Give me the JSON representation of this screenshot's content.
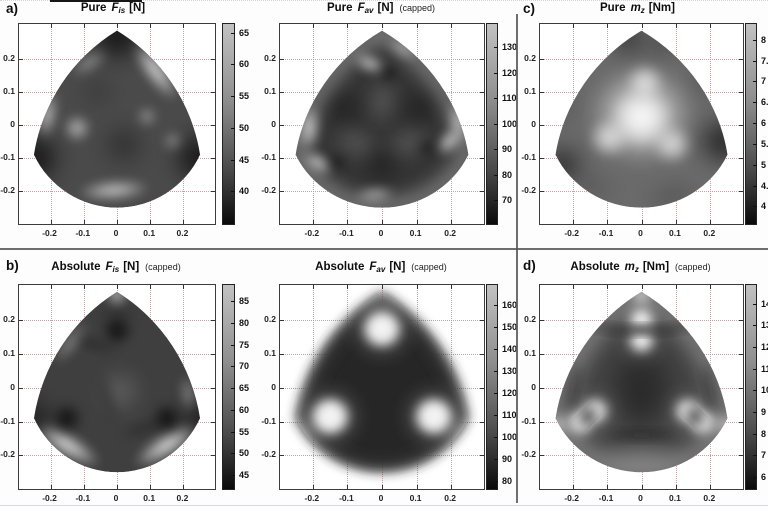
{
  "figure": {
    "xlim": [
      -0.295,
      0.295
    ],
    "ylim": [
      -0.3,
      0.305
    ],
    "panels": [
      {
        "id": "fis-pure",
        "corner": "a)",
        "title": {
          "prefix": "Pure",
          "sym": "F",
          "sub": "is",
          "unit": "[N]",
          "capped": ""
        },
        "x_ticks": [
          "-0.2",
          "-0.1",
          "0",
          "0.1",
          "0.2"
        ],
        "y_ticks": [
          "0.2",
          "0.1",
          "0",
          "-0.1",
          "-0.2"
        ],
        "colorbar_labels": [
          "65",
          "60",
          "55",
          "50",
          "45",
          "40"
        ]
      },
      {
        "id": "fav-pure",
        "corner": "",
        "title": {
          "prefix": "Pure",
          "sym": "F",
          "sub": "av",
          "unit": "[N]",
          "capped": "(capped)"
        },
        "x_ticks": [
          "-0.2",
          "-0.1",
          "0",
          "0.1",
          "0.2"
        ],
        "y_ticks": [
          "0.2",
          "0.1",
          "0",
          "-0.1",
          "-0.2"
        ],
        "colorbar_labels": [
          "130",
          "120",
          "110",
          "100",
          "90",
          "80",
          "70"
        ]
      },
      {
        "id": "mz-pure",
        "corner": "c)",
        "title": {
          "prefix": "Pure",
          "sym": "m",
          "sub": "z",
          "unit": "[Nm]",
          "capped": ""
        },
        "x_ticks": [
          "-0.2",
          "-0.1",
          "0",
          "0.1",
          "0.2"
        ],
        "y_ticks": [
          "0.2",
          "0.1",
          "0",
          "-0.1",
          "-0.2"
        ],
        "colorbar_labels": [
          "8",
          "7.5",
          "7",
          "6.5",
          "6",
          "5.5",
          "5",
          "4.5",
          "4"
        ]
      },
      {
        "id": "fis-abs",
        "corner": "b)",
        "title": {
          "prefix": "Absolute",
          "sym": "F",
          "sub": "is",
          "unit": "[N]",
          "capped": "(capped)"
        },
        "x_ticks": [
          "-0.2",
          "-0.1",
          "0",
          "0.1",
          "0.2"
        ],
        "y_ticks": [
          "0.2",
          "0.1",
          "0",
          "-0.1",
          "-0.2"
        ],
        "colorbar_labels": [
          "85",
          "80",
          "75",
          "70",
          "65",
          "60",
          "55",
          "50",
          "45"
        ]
      },
      {
        "id": "fav-abs",
        "corner": "",
        "title": {
          "prefix": "Absolute",
          "sym": "F",
          "sub": "av",
          "unit": "[N]",
          "capped": "(capped)"
        },
        "x_ticks": [
          "-0.2",
          "-0.1",
          "0",
          "0.1",
          "0.2"
        ],
        "y_ticks": [
          "0.2",
          "0.1",
          "0",
          "-0.1",
          "-0.2"
        ],
        "colorbar_labels": [
          "160",
          "150",
          "140",
          "130",
          "120",
          "110",
          "100",
          "90",
          "80"
        ]
      },
      {
        "id": "mz-abs",
        "corner": "d)",
        "title": {
          "prefix": "Absolute",
          "sym": "m",
          "sub": "z",
          "unit": "[Nm]",
          "capped": "(capped)"
        },
        "x_ticks": [
          "-0.2",
          "-0.1",
          "0",
          "0.1",
          "0.2"
        ],
        "y_ticks": [
          "0.2",
          "0.1",
          "0",
          "-0.1",
          "-0.2"
        ],
        "colorbar_labels": [
          "14",
          "13",
          "12",
          "11",
          "10",
          "9",
          "8",
          "7",
          "6"
        ]
      }
    ]
  },
  "chart_data": [
    {
      "type": "heatmap",
      "panel": "a",
      "title": "Pure F_is [N]",
      "capped": false,
      "colormap": "gray",
      "domain_shape": "reuleaux-triangle-workspace",
      "xlim": [
        -0.295,
        0.295
      ],
      "ylim": [
        -0.3,
        0.305
      ],
      "x_ticks": [
        -0.2,
        -0.1,
        0,
        0.1,
        0.2
      ],
      "y_ticks": [
        -0.2,
        -0.1,
        0,
        0.1,
        0.2
      ],
      "colorbar_ticks": [
        40,
        45,
        50,
        55,
        60,
        65
      ],
      "value_range": [
        35.0,
        66.5
      ],
      "pattern": "mostly dark (~40-50 N); bright streaks up to ~65 N along upper-right, left and bottom edges; darkest at the three workspace vertices"
    },
    {
      "type": "heatmap",
      "panel": "top-middle",
      "title": "Pure F_av [N] (capped)",
      "capped": true,
      "colormap": "gray",
      "domain_shape": "reuleaux-triangle-workspace",
      "xlim": [
        -0.295,
        0.295
      ],
      "ylim": [
        -0.3,
        0.305
      ],
      "x_ticks": [
        -0.2,
        -0.1,
        0,
        0.1,
        0.2
      ],
      "y_ticks": [
        -0.2,
        -0.1,
        0,
        0.1,
        0.2
      ],
      "colorbar_ticks": [
        70,
        80,
        90,
        100,
        110,
        120,
        130
      ],
      "value_range": [
        61,
        139.5
      ],
      "pattern": "dark core with light outer rim; bright swirl singularities near (0,0.17), (-0.15,-0.09) and (0.15,-0.09); bright patches at left and right edges"
    },
    {
      "type": "heatmap",
      "panel": "c",
      "title": "Pure m_z [Nm]",
      "capped": false,
      "colormap": "gray",
      "domain_shape": "reuleaux-triangle-workspace",
      "xlim": [
        -0.295,
        0.295
      ],
      "ylim": [
        -0.3,
        0.305
      ],
      "x_ticks": [
        -0.2,
        -0.1,
        0,
        0.1,
        0.2
      ],
      "y_ticks": [
        -0.2,
        -0.1,
        0,
        0.1,
        0.2
      ],
      "colorbar_ticks": [
        4,
        4.5,
        5,
        5.5,
        6,
        6.5,
        7,
        7.5,
        8
      ],
      "value_range": [
        3.6,
        8.4
      ],
      "pattern": "bright plateau (~8 Nm) in the centre; dark blobs (~4 Nm) at the right corner, lower-left corner and near the apex"
    },
    {
      "type": "heatmap",
      "panel": "b",
      "title": "Absolute F_is [N] (capped)",
      "capped": true,
      "colormap": "gray",
      "domain_shape": "reuleaux-triangle-workspace",
      "xlim": [
        -0.295,
        0.295
      ],
      "ylim": [
        -0.3,
        0.305
      ],
      "x_ticks": [
        -0.2,
        -0.1,
        0,
        0.1,
        0.2
      ],
      "y_ticks": [
        -0.2,
        -0.1,
        0,
        0.1,
        0.2
      ],
      "colorbar_ticks": [
        45,
        50,
        55,
        60,
        65,
        70,
        75,
        80,
        85
      ],
      "value_range": [
        42,
        89
      ],
      "pattern": "dark interior with bright rim (~85 N) along lower-left and lower-right edges and apex tip; dark singular points at (0,0.17), (-0.15,-0.09), (0.15,-0.09) with thin dark radiating curves"
    },
    {
      "type": "heatmap",
      "panel": "bottom-middle",
      "title": "Absolute F_av [N] (capped)",
      "capped": true,
      "colormap": "gray",
      "domain_shape": "rounded-triangle-workspace",
      "xlim": [
        -0.295,
        0.295
      ],
      "ylim": [
        -0.3,
        0.305
      ],
      "x_ticks": [
        -0.2,
        -0.1,
        0,
        0.1,
        0.2
      ],
      "y_ticks": [
        -0.2,
        -0.1,
        0,
        0.1,
        0.2
      ],
      "colorbar_ticks": [
        80,
        90,
        100,
        110,
        120,
        130,
        140,
        150,
        160
      ],
      "value_range": [
        77,
        169.5
      ],
      "pattern": "very dark (~80-90 N) soft-edged blob with three saturated bright spots (capped ~160 N) at (0,0.17), (-0.15,-0.085), (0.15,-0.085)"
    },
    {
      "type": "heatmap",
      "panel": "d",
      "title": "Absolute m_z [Nm] (capped)",
      "capped": true,
      "colormap": "gray",
      "domain_shape": "rounded-triangle-workspace",
      "xlim": [
        -0.295,
        0.295
      ],
      "ylim": [
        -0.3,
        0.305
      ],
      "x_ticks": [
        -0.2,
        -0.1,
        0,
        0.1,
        0.2
      ],
      "y_ticks": [
        -0.2,
        -0.1,
        0,
        0.1,
        0.2
      ],
      "colorbar_ticks": [
        6,
        7,
        8,
        9,
        10,
        11,
        12,
        13,
        14
      ],
      "value_range": [
        5.5,
        14.9
      ],
      "pattern": "medium-dark centre with lighter rim and bright corner tips; three pairs of bright capped spots (~14 Nm) with dark pinch lines near (0,0.17), (-0.15,-0.09), (0.15,-0.09)"
    }
  ]
}
